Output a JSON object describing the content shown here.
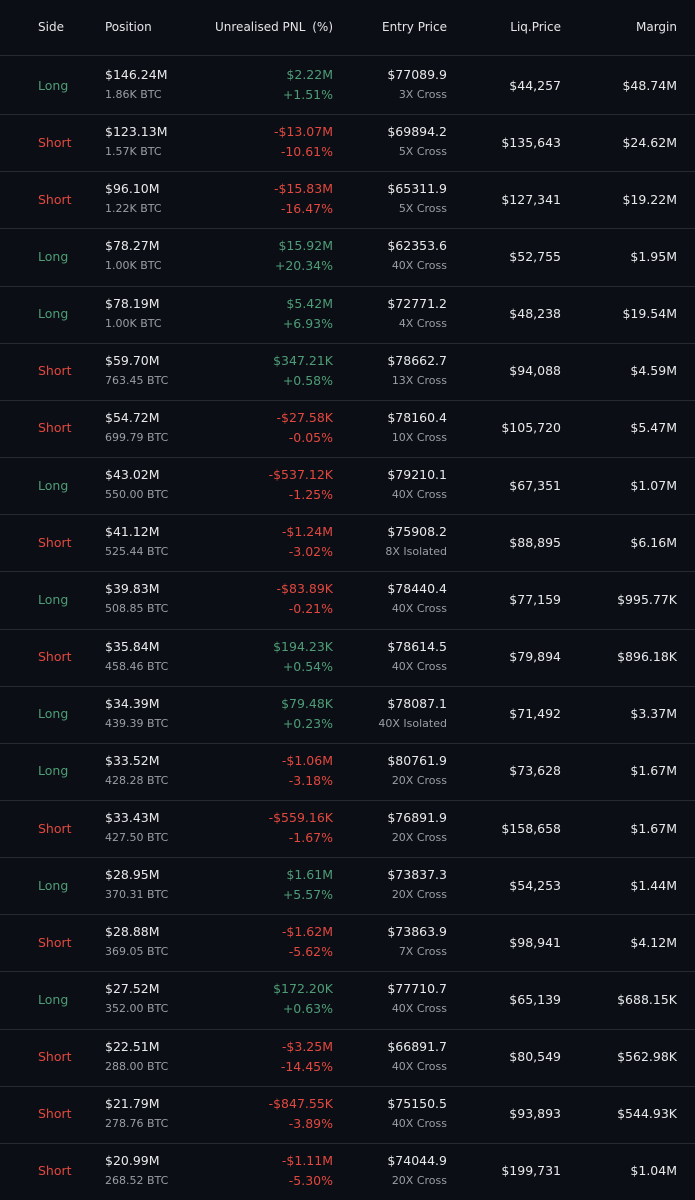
{
  "header": {
    "side": "Side",
    "position": "Position",
    "pnl": "Unrealised PNL",
    "pct": "(%)",
    "entry": "Entry Price",
    "liq": "Liq.Price",
    "margin": "Margin"
  },
  "rows": [
    [
      "Long",
      "$146.24M",
      "1.86K BTC",
      "$2.22M",
      "+1.51%",
      "$77089.9",
      "3X Cross",
      "$44,257",
      "$48.74M"
    ],
    [
      "Short",
      "$123.13M",
      "1.57K BTC",
      "-$13.07M",
      "-10.61%",
      "$69894.2",
      "5X Cross",
      "$135,643",
      "$24.62M"
    ],
    [
      "Short",
      "$96.10M",
      "1.22K BTC",
      "-$15.83M",
      "-16.47%",
      "$65311.9",
      "5X Cross",
      "$127,341",
      "$19.22M"
    ],
    [
      "Long",
      "$78.27M",
      "1.00K BTC",
      "$15.92M",
      "+20.34%",
      "$62353.6",
      "40X Cross",
      "$52,755",
      "$1.95M"
    ],
    [
      "Long",
      "$78.19M",
      "1.00K BTC",
      "$5.42M",
      "+6.93%",
      "$72771.2",
      "4X Cross",
      "$48,238",
      "$19.54M"
    ],
    [
      "Short",
      "$59.70M",
      "763.45 BTC",
      "$347.21K",
      "+0.58%",
      "$78662.7",
      "13X Cross",
      "$94,088",
      "$4.59M"
    ],
    [
      "Short",
      "$54.72M",
      "699.79 BTC",
      "-$27.58K",
      "-0.05%",
      "$78160.4",
      "10X Cross",
      "$105,720",
      "$5.47M"
    ],
    [
      "Long",
      "$43.02M",
      "550.00 BTC",
      "-$537.12K",
      "-1.25%",
      "$79210.1",
      "40X Cross",
      "$67,351",
      "$1.07M"
    ],
    [
      "Short",
      "$41.12M",
      "525.44 BTC",
      "-$1.24M",
      "-3.02%",
      "$75908.2",
      "8X Isolated",
      "$88,895",
      "$6.16M"
    ],
    [
      "Long",
      "$39.83M",
      "508.85 BTC",
      "-$83.89K",
      "-0.21%",
      "$78440.4",
      "40X Cross",
      "$77,159",
      "$995.77K"
    ],
    [
      "Short",
      "$35.84M",
      "458.46 BTC",
      "$194.23K",
      "+0.54%",
      "$78614.5",
      "40X Cross",
      "$79,894",
      "$896.18K"
    ],
    [
      "Long",
      "$34.39M",
      "439.39 BTC",
      "$79.48K",
      "+0.23%",
      "$78087.1",
      "40X Isolated",
      "$71,492",
      "$3.37M"
    ],
    [
      "Long",
      "$33.52M",
      "428.28 BTC",
      "-$1.06M",
      "-3.18%",
      "$80761.9",
      "20X Cross",
      "$73,628",
      "$1.67M"
    ],
    [
      "Short",
      "$33.43M",
      "427.50 BTC",
      "-$559.16K",
      "-1.67%",
      "$76891.9",
      "20X Cross",
      "$158,658",
      "$1.67M"
    ],
    [
      "Long",
      "$28.95M",
      "370.31 BTC",
      "$1.61M",
      "+5.57%",
      "$73837.3",
      "20X Cross",
      "$54,253",
      "$1.44M"
    ],
    [
      "Short",
      "$28.88M",
      "369.05 BTC",
      "-$1.62M",
      "-5.62%",
      "$73863.9",
      "7X Cross",
      "$98,941",
      "$4.12M"
    ],
    [
      "Long",
      "$27.52M",
      "352.00 BTC",
      "$172.20K",
      "+0.63%",
      "$77710.7",
      "40X Cross",
      "$65,139",
      "$688.15K"
    ],
    [
      "Short",
      "$22.51M",
      "288.00 BTC",
      "-$3.25M",
      "-14.45%",
      "$66891.7",
      "40X Cross",
      "$80,549",
      "$562.98K"
    ],
    [
      "Short",
      "$21.79M",
      "278.76 BTC",
      "-$847.55K",
      "-3.89%",
      "$75150.5",
      "40X Cross",
      "$93,893",
      "$544.93K"
    ],
    [
      "Short",
      "$20.99M",
      "268.52 BTC",
      "-$1.11M",
      "-5.30%",
      "$74044.9",
      "20X Cross",
      "$199,731",
      "$1.04M"
    ]
  ]
}
